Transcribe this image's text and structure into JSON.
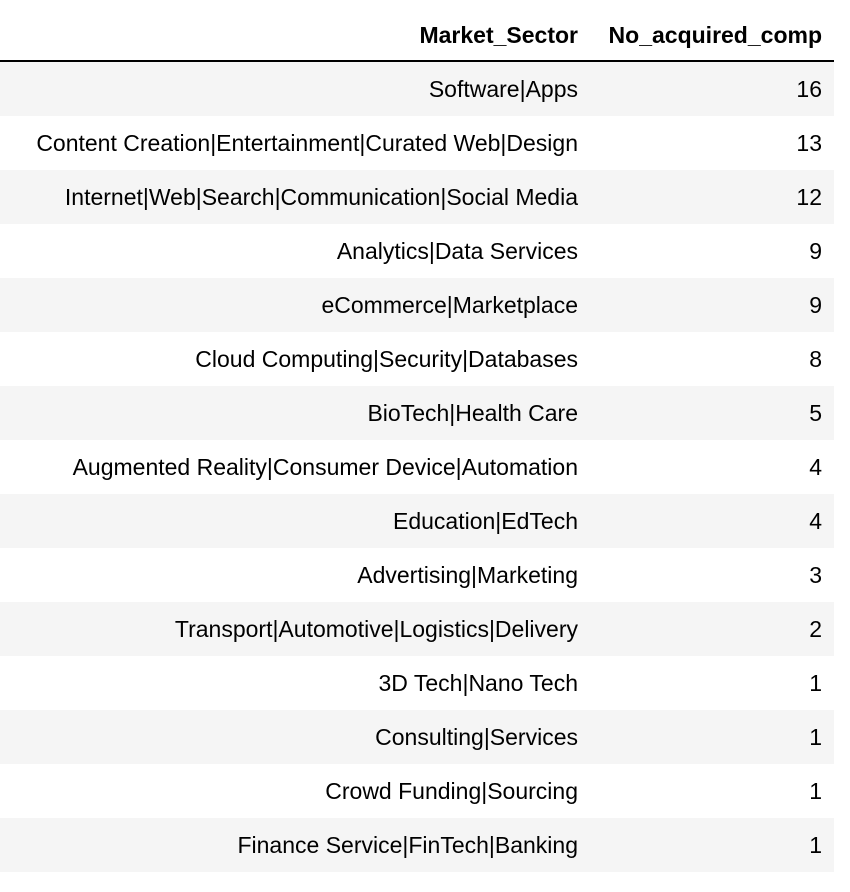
{
  "table": {
    "columns": [
      "Market_Sector",
      "No_acquired_comp"
    ],
    "rows": [
      {
        "sector": "Software|Apps",
        "count": "16"
      },
      {
        "sector": "Content Creation|Entertainment|Curated Web|Design",
        "count": "13"
      },
      {
        "sector": "Internet|Web|Search|Communication|Social Media",
        "count": "12"
      },
      {
        "sector": "Analytics|Data Services",
        "count": "9"
      },
      {
        "sector": "eCommerce|Marketplace",
        "count": "9"
      },
      {
        "sector": "Cloud Computing|Security|Databases",
        "count": "8"
      },
      {
        "sector": "BioTech|Health Care",
        "count": "5"
      },
      {
        "sector": "Augmented Reality|Consumer Device|Automation",
        "count": "4"
      },
      {
        "sector": "Education|EdTech",
        "count": "4"
      },
      {
        "sector": "Advertising|Marketing",
        "count": "3"
      },
      {
        "sector": "Transport|Automotive|Logistics|Delivery",
        "count": "2"
      },
      {
        "sector": "3D Tech|Nano Tech",
        "count": "1"
      },
      {
        "sector": "Consulting|Services",
        "count": "1"
      },
      {
        "sector": "Crowd Funding|Sourcing",
        "count": "1"
      },
      {
        "sector": "Finance Service|FinTech|Banking",
        "count": "1"
      }
    ]
  }
}
